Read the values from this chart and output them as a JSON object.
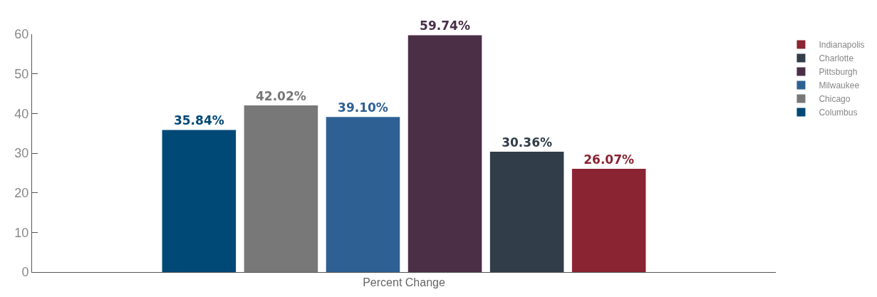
{
  "chart_data": {
    "type": "bar",
    "categories": [
      "Percent Change"
    ],
    "xlabel": null,
    "series": [
      {
        "name": "Columbus",
        "color": "#004876",
        "values": [
          35.84
        ],
        "value_labels": [
          "35.84%"
        ]
      },
      {
        "name": "Chicago",
        "color": "#787878",
        "values": [
          42.02
        ],
        "value_labels": [
          "42.02%"
        ]
      },
      {
        "name": "Milwaukee",
        "color": "#2f6094",
        "values": [
          39.1
        ],
        "value_labels": [
          "39.10%"
        ]
      },
      {
        "name": "Pittsburgh",
        "color": "#4a2f47",
        "values": [
          59.74
        ],
        "value_labels": [
          "59.74%"
        ]
      },
      {
        "name": "Charlotte",
        "color": "#313d48",
        "values": [
          30.36
        ],
        "value_labels": [
          "30.36%"
        ]
      },
      {
        "name": "Indianapolis",
        "color": "#8a2433",
        "values": [
          26.07
        ],
        "value_labels": [
          "26.07%"
        ]
      }
    ],
    "ylim": [
      0,
      60
    ],
    "yticks": [
      0,
      10,
      20,
      30,
      40,
      50,
      60
    ],
    "legend": "right"
  }
}
